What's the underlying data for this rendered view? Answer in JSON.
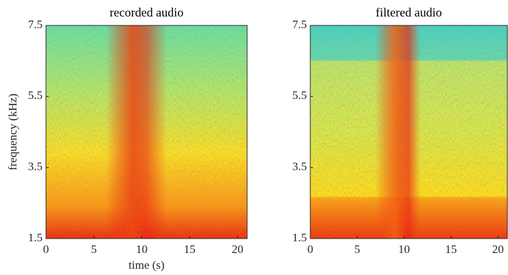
{
  "chart_data": [
    {
      "type": "spectrogram",
      "title": "recorded audio",
      "xlabel": "time (s)",
      "ylabel": "frequency (kHz)",
      "xlim": [
        0,
        21
      ],
      "xticks": [
        0,
        5,
        10,
        15,
        20
      ],
      "ylim": [
        1.5,
        7.5
      ],
      "yticks": [
        1.5,
        3.5,
        5.5,
        7.5
      ]
    },
    {
      "type": "spectrogram",
      "title": "filtered audio",
      "xlim": [
        0,
        21
      ],
      "xticks": [
        0,
        5,
        10,
        15,
        20
      ],
      "ylim": [
        1.5,
        7.5
      ],
      "yticks": [
        1.5,
        3.5,
        5.5,
        7.5
      ]
    }
  ]
}
